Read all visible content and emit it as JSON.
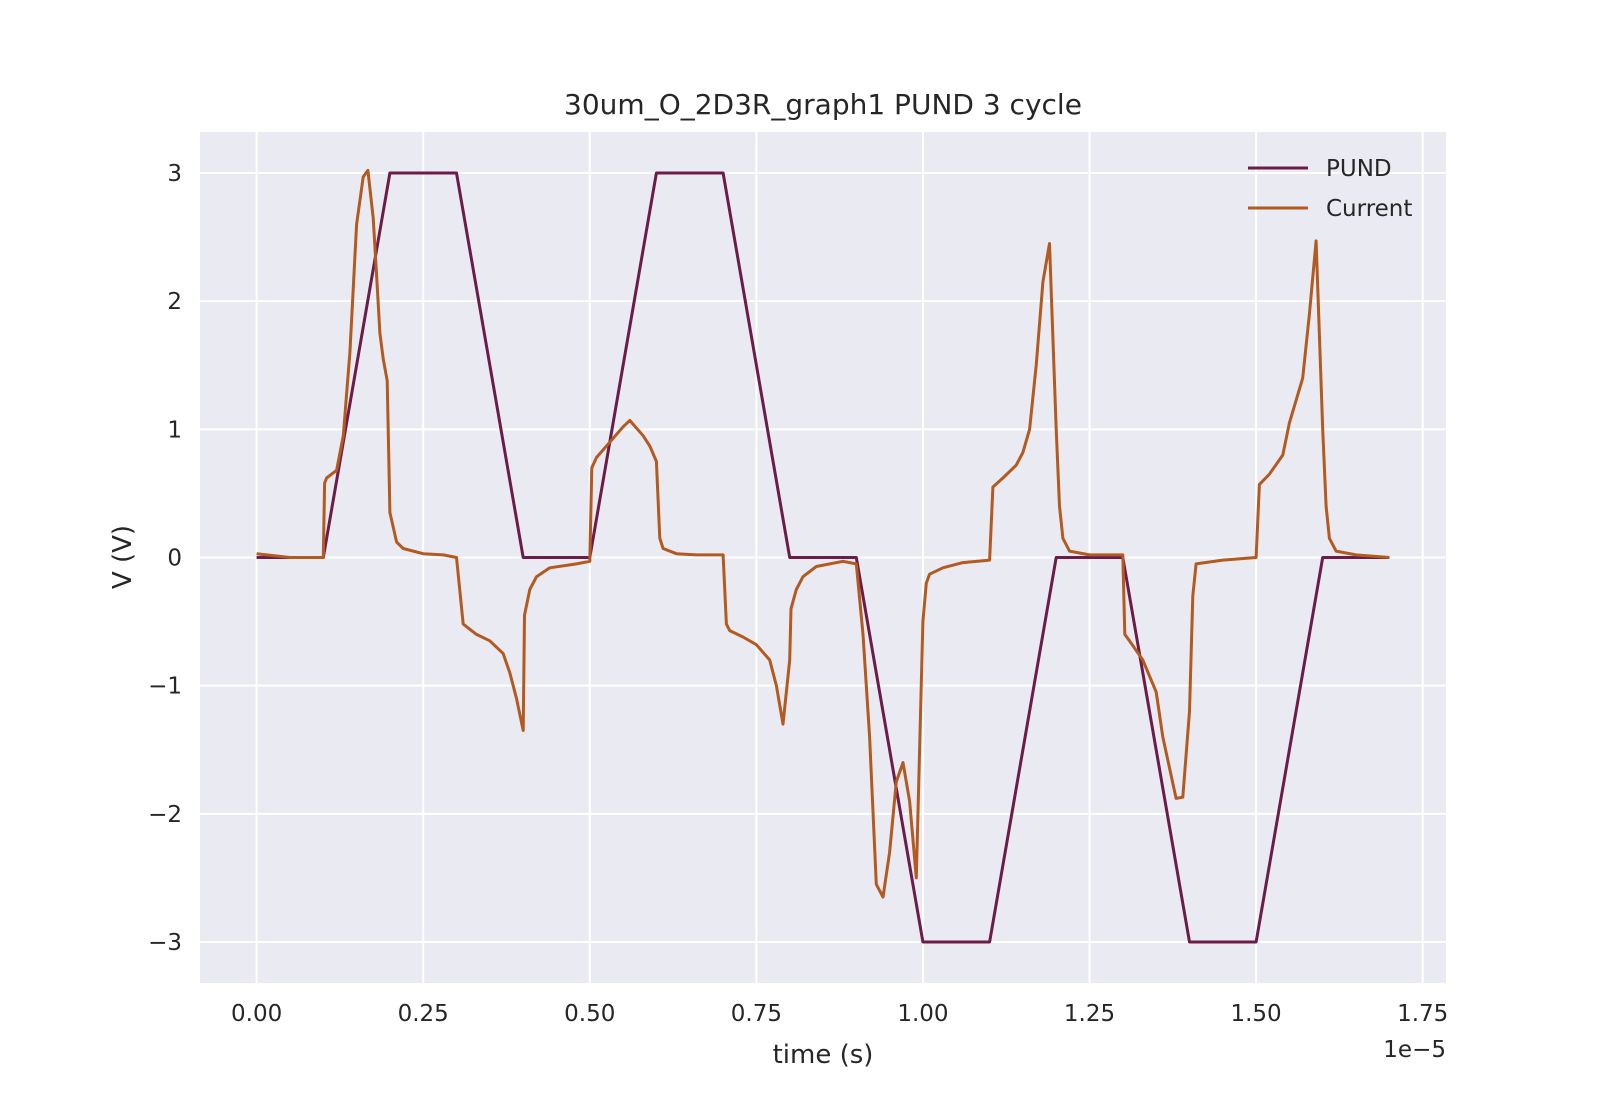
{
  "chart_data": {
    "type": "line",
    "title": "30um_O_2D3R_graph1 PUND 3 cycle",
    "xlabel": "time (s)",
    "ylabel": "V (V)",
    "x_offset_label": "1e−5",
    "xlim": [
      -0.085,
      1.785
    ],
    "ylim": [
      -3.32,
      3.32
    ],
    "xticks": [
      0.0,
      0.25,
      0.5,
      0.75,
      1.0,
      1.25,
      1.5,
      1.75
    ],
    "xtick_labels": [
      "0.00",
      "0.25",
      "0.50",
      "0.75",
      "1.00",
      "1.25",
      "1.50",
      "1.75"
    ],
    "yticks": [
      -3,
      -2,
      -1,
      0,
      1,
      2,
      3
    ],
    "ytick_labels": [
      "−3",
      "−2",
      "−1",
      "0",
      "1",
      "2",
      "3"
    ],
    "grid": true,
    "legend_position": "top-right",
    "background_color": "#eaeaf2",
    "series": [
      {
        "name": "PUND",
        "color": "#6b1c48",
        "x": [
          0.0,
          0.1,
          0.2,
          0.3,
          0.4,
          0.5,
          0.6,
          0.7,
          0.8,
          0.9,
          1.0,
          1.1,
          1.2,
          1.3,
          1.4,
          1.5,
          1.6,
          1.7
        ],
        "y": [
          0.0,
          0.0,
          3.0,
          3.0,
          0.0,
          0.0,
          3.0,
          3.0,
          0.0,
          0.0,
          -3.0,
          -3.0,
          0.0,
          0.0,
          -3.0,
          -3.0,
          0.0,
          0.0
        ]
      },
      {
        "name": "Current",
        "color": "#b35a20",
        "x": [
          0.0,
          0.05,
          0.1,
          0.102,
          0.105,
          0.12,
          0.13,
          0.14,
          0.15,
          0.16,
          0.167,
          0.175,
          0.18,
          0.185,
          0.19,
          0.196,
          0.2,
          0.21,
          0.22,
          0.25,
          0.28,
          0.3,
          0.31,
          0.33,
          0.35,
          0.37,
          0.38,
          0.39,
          0.4,
          0.402,
          0.41,
          0.42,
          0.44,
          0.48,
          0.5,
          0.503,
          0.51,
          0.53,
          0.55,
          0.56,
          0.58,
          0.59,
          0.6,
          0.605,
          0.61,
          0.63,
          0.66,
          0.7,
          0.705,
          0.71,
          0.73,
          0.75,
          0.77,
          0.78,
          0.79,
          0.8,
          0.802,
          0.81,
          0.82,
          0.84,
          0.88,
          0.9,
          0.91,
          0.92,
          0.93,
          0.94,
          0.95,
          0.96,
          0.97,
          0.98,
          0.99,
          0.995,
          1.0,
          1.005,
          1.01,
          1.03,
          1.06,
          1.1,
          1.105,
          1.12,
          1.14,
          1.15,
          1.16,
          1.17,
          1.18,
          1.19,
          1.2,
          1.205,
          1.21,
          1.22,
          1.25,
          1.3,
          1.303,
          1.31,
          1.33,
          1.35,
          1.36,
          1.38,
          1.39,
          1.4,
          1.405,
          1.41,
          1.45,
          1.5,
          1.505,
          1.52,
          1.54,
          1.55,
          1.57,
          1.58,
          1.59,
          1.6,
          1.605,
          1.61,
          1.62,
          1.65,
          1.7
        ],
        "y": [
          0.03,
          0.0,
          0.0,
          0.58,
          0.62,
          0.68,
          0.95,
          1.6,
          2.6,
          2.97,
          3.02,
          2.65,
          2.2,
          1.75,
          1.55,
          1.38,
          0.35,
          0.12,
          0.07,
          0.03,
          0.02,
          0.0,
          -0.52,
          -0.6,
          -0.65,
          -0.75,
          -0.9,
          -1.1,
          -1.35,
          -0.45,
          -0.25,
          -0.15,
          -0.08,
          -0.05,
          -0.03,
          0.7,
          0.78,
          0.9,
          1.02,
          1.07,
          0.95,
          0.87,
          0.75,
          0.15,
          0.07,
          0.03,
          0.02,
          0.02,
          -0.52,
          -0.57,
          -0.62,
          -0.68,
          -0.8,
          -1.0,
          -1.3,
          -0.8,
          -0.4,
          -0.25,
          -0.15,
          -0.07,
          -0.03,
          -0.05,
          -0.6,
          -1.4,
          -2.55,
          -2.65,
          -2.3,
          -1.75,
          -1.6,
          -1.9,
          -2.5,
          -1.5,
          -0.5,
          -0.2,
          -0.13,
          -0.08,
          -0.04,
          -0.02,
          0.55,
          0.62,
          0.72,
          0.82,
          1.0,
          1.5,
          2.15,
          2.45,
          1.0,
          0.4,
          0.15,
          0.05,
          0.02,
          0.02,
          -0.6,
          -0.65,
          -0.8,
          -1.05,
          -1.4,
          -1.88,
          -1.87,
          -1.2,
          -0.3,
          -0.05,
          -0.02,
          0.0,
          0.57,
          0.65,
          0.8,
          1.05,
          1.4,
          1.9,
          2.47,
          1.0,
          0.4,
          0.15,
          0.05,
          0.02,
          0.0
        ]
      }
    ]
  }
}
